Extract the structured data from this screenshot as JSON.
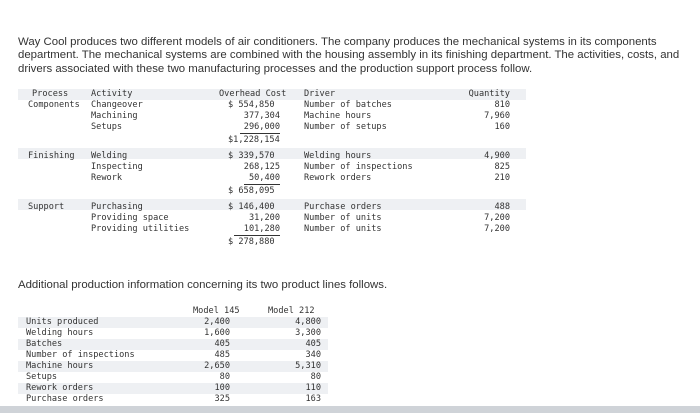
{
  "intro": "Way Cool produces two different models of air conditioners. The company produces the mechanical systems in its components department. The mechanical systems are combined with the housing assembly in its finishing department. The activities, costs, and drivers associated with these two manufacturing processes and the production support process follow.",
  "table1": {
    "headers": {
      "process": "Process",
      "activity": "Activity",
      "cost": "Overhead Cost",
      "driver": "Driver",
      "qty": "Quantity"
    },
    "components": {
      "process": "Components",
      "activities": [
        "Changeover",
        "Machining",
        "Setups"
      ],
      "costs": [
        "$ 554,850",
        "377,304",
        "296,000"
      ],
      "drivers": [
        "Number of batches",
        "Machine hours",
        "Number of setups"
      ],
      "qty": [
        "810",
        "7,960",
        "160"
      ],
      "total": "$1,228,154"
    },
    "finishing": {
      "process": "Finishing",
      "activities": [
        "Welding",
        "Inspecting",
        "Rework"
      ],
      "costs": [
        "$ 339,570",
        "268,125",
        "50,400"
      ],
      "drivers": [
        "Welding hours",
        "Number of inspections",
        "Rework orders"
      ],
      "qty": [
        "4,900",
        "825",
        "210"
      ],
      "total": "$ 658,095"
    },
    "support": {
      "process": "Support",
      "activities": [
        "Purchasing",
        "Providing space",
        "Providing utilities"
      ],
      "costs": [
        "$ 146,400",
        "31,200",
        "101,280"
      ],
      "drivers": [
        "Purchase orders",
        "Number of units",
        "Number of units"
      ],
      "qty": [
        "488",
        "7,200",
        "7,200"
      ],
      "total": "$ 278,880"
    }
  },
  "sub": "Additional production information concerning its two product lines follows.",
  "table2": {
    "headers": {
      "m145": "Model 145",
      "m212": "Model 212"
    },
    "rows": [
      {
        "label": "Units produced",
        "m145": "2,400",
        "m212": "4,800"
      },
      {
        "label": "Welding hours",
        "m145": "1,600",
        "m212": "3,300"
      },
      {
        "label": "Batches",
        "m145": "405",
        "m212": "405"
      },
      {
        "label": "Number of inspections",
        "m145": "485",
        "m212": "340"
      },
      {
        "label": "Machine hours",
        "m145": "2,650",
        "m212": "5,310"
      },
      {
        "label": "Setups",
        "m145": "80",
        "m212": "80"
      },
      {
        "label": "Rework orders",
        "m145": "100",
        "m212": "110"
      },
      {
        "label": "Purchase orders",
        "m145": "325",
        "m212": "163"
      }
    ]
  }
}
